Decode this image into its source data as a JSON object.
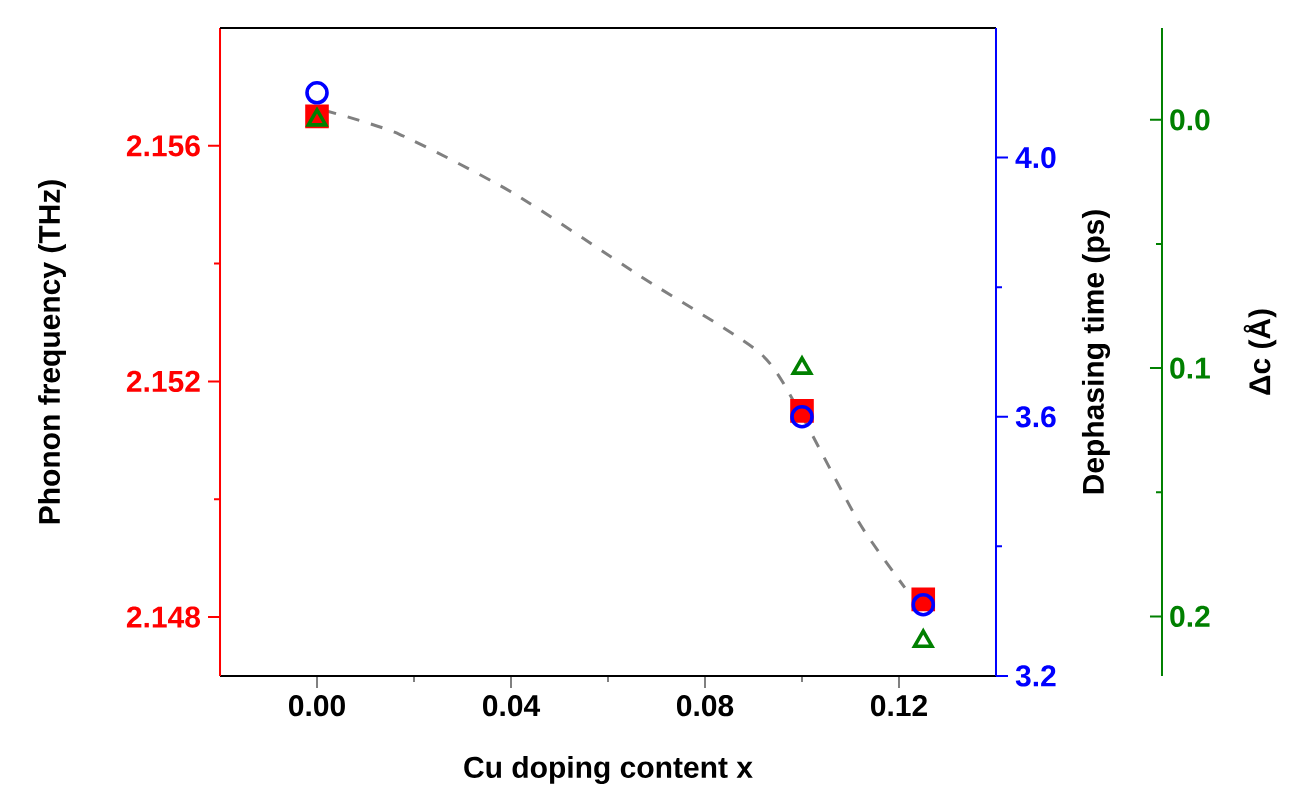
{
  "chart_data": {
    "type": "scatter",
    "xlabel": "Cu doping content x",
    "ylabel": "Phonon frequency (THz)",
    "y2label": "Dephasing time (ps)",
    "y3label": "Δc (Å)",
    "x": [
      0,
      0.1,
      0.125
    ],
    "xlim": [
      -0.02,
      0.14
    ],
    "xticks": [
      {
        "value": 0,
        "label": "0.00"
      },
      0.04,
      0.08,
      0.12
    ],
    "ylim": [
      2.147,
      2.158
    ],
    "yticks": [
      2.148,
      2.152,
      2.156
    ],
    "y2lim": [
      3.2,
      4.2
    ],
    "y2ticks": [
      3.2,
      3.6,
      {
        "value": 4,
        "label": "4.0"
      }
    ],
    "y3lim": [
      0.224,
      -0.037
    ],
    "y3ticks": [
      {
        "value": 0,
        "label": "0.0"
      },
      0.1,
      0.2
    ],
    "series": [
      {
        "type": "line",
        "color": "#808080",
        "line_style": "dashed",
        "marker": "none",
        "x": [
          0.0016,
          0.0169,
          0.0404,
          0.0664,
          0.0911,
          0.0994,
          0.1118,
          0.1212
        ],
        "values": [
          2.1566,
          2.1562,
          2.1552,
          2.1538,
          2.1525,
          2.1515,
          2.1496,
          2.1485
        ]
      },
      {
        "color": "#ff0000",
        "marker": "square",
        "values": [
          2.1565,
          2.1515,
          2.1483
        ]
      },
      {
        "color": "#0000ff",
        "marker": "circle",
        "axis": "y2",
        "values": [
          4.1,
          3.6,
          3.31
        ]
      },
      {
        "color": "#008000",
        "marker": "triangle",
        "axis": "y3",
        "values": [
          0.0,
          0.1,
          0.21
        ]
      }
    ]
  }
}
